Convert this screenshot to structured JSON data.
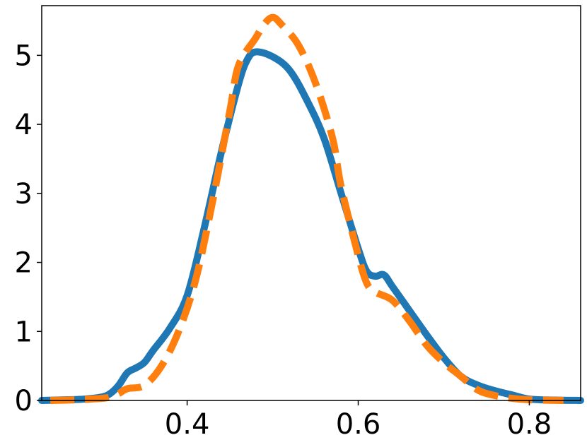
{
  "chart_data": {
    "type": "line",
    "title": "",
    "xlabel": "",
    "ylabel": "",
    "xlim": [
      0.23,
      0.86
    ],
    "ylim": [
      0,
      5.72
    ],
    "grid": false,
    "legend": "none",
    "x_ticks": [
      {
        "value": 0.4,
        "label": "0.4"
      },
      {
        "value": 0.6,
        "label": "0.6"
      },
      {
        "value": 0.8,
        "label": "0.8"
      }
    ],
    "y_ticks": [
      {
        "value": 0,
        "label": "0"
      },
      {
        "value": 1,
        "label": "1"
      },
      {
        "value": 2,
        "label": "2"
      },
      {
        "value": 3,
        "label": "3"
      },
      {
        "value": 4,
        "label": "4"
      },
      {
        "value": 5,
        "label": "5"
      }
    ],
    "series": [
      {
        "color": "#1f77b4",
        "style": "solid",
        "points": [
          [
            0.23,
            0.0
          ],
          [
            0.26,
            0.01
          ],
          [
            0.28,
            0.02
          ],
          [
            0.3,
            0.05
          ],
          [
            0.31,
            0.1
          ],
          [
            0.32,
            0.22
          ],
          [
            0.33,
            0.4
          ],
          [
            0.34,
            0.47
          ],
          [
            0.35,
            0.55
          ],
          [
            0.36,
            0.72
          ],
          [
            0.38,
            1.05
          ],
          [
            0.4,
            1.52
          ],
          [
            0.42,
            2.5
          ],
          [
            0.44,
            3.6
          ],
          [
            0.46,
            4.58
          ],
          [
            0.47,
            4.93
          ],
          [
            0.48,
            5.05
          ],
          [
            0.5,
            4.98
          ],
          [
            0.52,
            4.78
          ],
          [
            0.54,
            4.35
          ],
          [
            0.56,
            3.8
          ],
          [
            0.58,
            3.0
          ],
          [
            0.6,
            2.2
          ],
          [
            0.61,
            1.87
          ],
          [
            0.62,
            1.8
          ],
          [
            0.63,
            1.82
          ],
          [
            0.64,
            1.65
          ],
          [
            0.66,
            1.3
          ],
          [
            0.68,
            0.95
          ],
          [
            0.7,
            0.62
          ],
          [
            0.72,
            0.35
          ],
          [
            0.74,
            0.22
          ],
          [
            0.76,
            0.14
          ],
          [
            0.78,
            0.08
          ],
          [
            0.8,
            0.02
          ],
          [
            0.83,
            0.005
          ],
          [
            0.86,
            0.0
          ]
        ]
      },
      {
        "color": "#ff7f0e",
        "style": "dashed",
        "points": [
          [
            0.24,
            0.0
          ],
          [
            0.27,
            0.01
          ],
          [
            0.3,
            0.03
          ],
          [
            0.31,
            0.05
          ],
          [
            0.32,
            0.1
          ],
          [
            0.33,
            0.17
          ],
          [
            0.35,
            0.22
          ],
          [
            0.37,
            0.5
          ],
          [
            0.39,
            1.0
          ],
          [
            0.41,
            1.75
          ],
          [
            0.43,
            2.9
          ],
          [
            0.45,
            4.2
          ],
          [
            0.46,
            4.85
          ],
          [
            0.48,
            5.25
          ],
          [
            0.49,
            5.45
          ],
          [
            0.5,
            5.55
          ],
          [
            0.51,
            5.45
          ],
          [
            0.53,
            5.15
          ],
          [
            0.55,
            4.6
          ],
          [
            0.57,
            3.8
          ],
          [
            0.58,
            3.1
          ],
          [
            0.6,
            2.1
          ],
          [
            0.61,
            1.7
          ],
          [
            0.62,
            1.57
          ],
          [
            0.64,
            1.45
          ],
          [
            0.66,
            1.15
          ],
          [
            0.68,
            0.8
          ],
          [
            0.7,
            0.55
          ],
          [
            0.72,
            0.35
          ],
          [
            0.74,
            0.15
          ],
          [
            0.76,
            0.07
          ],
          [
            0.78,
            0.03
          ],
          [
            0.8,
            0.01
          ],
          [
            0.84,
            0.0
          ]
        ]
      }
    ]
  }
}
